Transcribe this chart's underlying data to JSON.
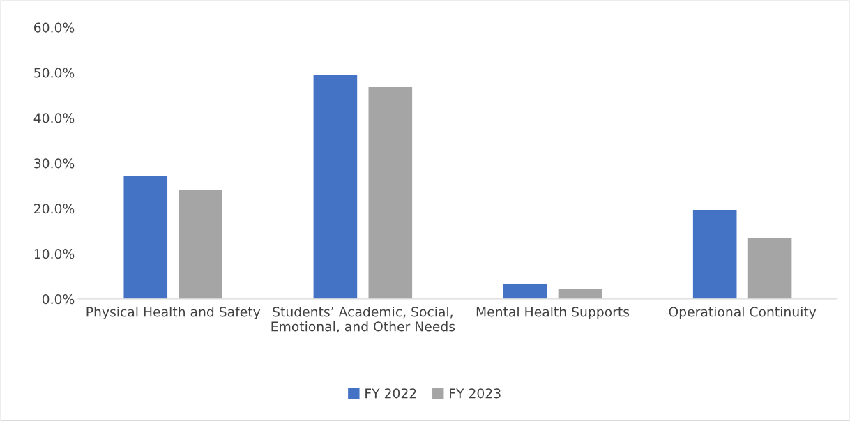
{
  "chart_data": {
    "type": "bar",
    "categories": [
      "Physical Health and Safety",
      "Students’ Academic, Social, Emotional, and Other Needs",
      "Mental Health Supports",
      "Operational Continuity"
    ],
    "series": [
      {
        "name": "FY 2022",
        "color": "#4472c4",
        "values": [
          27.2,
          49.4,
          3.2,
          19.7
        ]
      },
      {
        "name": "FY 2023",
        "color": "#a5a5a5",
        "values": [
          24.0,
          46.8,
          2.2,
          13.5
        ]
      }
    ],
    "ylim": [
      0,
      60
    ],
    "yticks": [
      {
        "value": 0,
        "label": "0.0%"
      },
      {
        "value": 10,
        "label": "10.0%"
      },
      {
        "value": 20,
        "label": "20.0%"
      },
      {
        "value": 30,
        "label": "30.0%"
      },
      {
        "value": 40,
        "label": "40.0%"
      },
      {
        "value": 50,
        "label": "50.0%"
      },
      {
        "value": 60,
        "label": "60.0%"
      }
    ],
    "grid": false,
    "legend": "bottom"
  }
}
